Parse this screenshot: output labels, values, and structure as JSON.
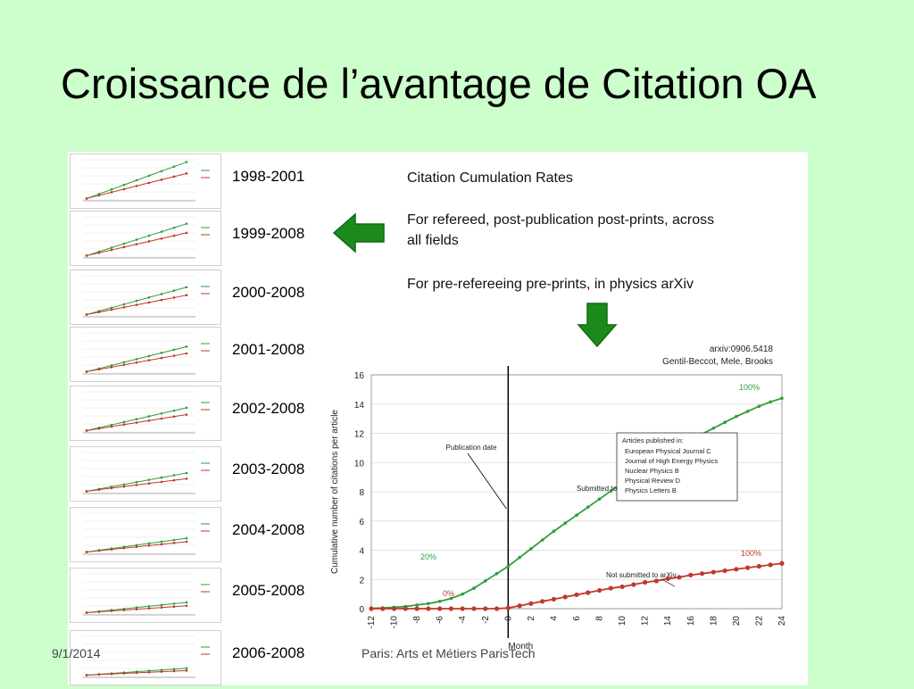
{
  "slide": {
    "title": "Croissance de l’avantage de Citation OA",
    "footer_date": "9/1/2014",
    "footer_place": "Paris: Arts et Métiers ParisTech"
  },
  "notes": {
    "heading": "Citation Cumulation Rates",
    "refereed_line1": "For refereed, post-publication post-prints, across",
    "refereed_line2": "all fields",
    "preprints": "For pre-refereeing pre-prints, in physics arXiv"
  },
  "colors": {
    "oa": "#2e9e3a",
    "non_oa": "#c0392b",
    "arrow": "#1b8a1b",
    "background": "#ccffcc"
  },
  "icons": {
    "left_arrow": "left-arrow-icon",
    "down_arrow": "down-arrow-icon"
  },
  "mini_charts": [
    {
      "range": "1998-2001",
      "oa": [
        2,
        34
      ],
      "non_oa": [
        2,
        24
      ]
    },
    {
      "range": "1999-2008",
      "oa": [
        2,
        30
      ],
      "non_oa": [
        2,
        22
      ]
    },
    {
      "range": "2000-2008",
      "oa": [
        2,
        26
      ],
      "non_oa": [
        2,
        19
      ]
    },
    {
      "range": "2001-2008",
      "oa": [
        2,
        24
      ],
      "non_oa": [
        2,
        18
      ]
    },
    {
      "range": "2002-2008",
      "oa": [
        2,
        22
      ],
      "non_oa": [
        2,
        16
      ]
    },
    {
      "range": "2003-2008",
      "oa": [
        2,
        18
      ],
      "non_oa": [
        2,
        13
      ]
    },
    {
      "range": "2004-2008",
      "oa": [
        2,
        14
      ],
      "non_oa": [
        2,
        11
      ]
    },
    {
      "range": "2005-2008",
      "oa": [
        2,
        11
      ],
      "non_oa": [
        2,
        8
      ]
    },
    {
      "range": "2006-2008",
      "oa": [
        2,
        8
      ],
      "non_oa": [
        2,
        6
      ]
    }
  ],
  "chart_data": {
    "type": "line",
    "source_line1": "arxiv:0906.5418",
    "source_line2": "Gentil-Beccot, Mele, Brooks",
    "xlabel": "Month",
    "ylabel": "Cumulative number of citations per article",
    "xlim": [
      -12,
      24
    ],
    "ylim": [
      0,
      16
    ],
    "xticks": [
      -12,
      -10,
      -8,
      -6,
      -4,
      -2,
      0,
      2,
      4,
      6,
      8,
      10,
      12,
      14,
      16,
      18,
      20,
      22,
      24
    ],
    "yticks": [
      0,
      2,
      4,
      6,
      8,
      10,
      12,
      14,
      16
    ],
    "publication_date_label": "Publication date",
    "publication_month": 0,
    "legend": {
      "title": "Articles published in:",
      "items": [
        "European Physical Journal C",
        "Journal of High Energy Physics",
        "Nuclear Physics B",
        "Physical Review D",
        "Physics Letters B"
      ]
    },
    "series": [
      {
        "name": "Submitted to arXiv",
        "color": "#2e9e3a",
        "x": [
          -12,
          -11,
          -10,
          -9,
          -8,
          -7,
          -6,
          -5,
          -4,
          -3,
          -2,
          -1,
          0,
          1,
          2,
          3,
          4,
          5,
          6,
          7,
          8,
          9,
          10,
          11,
          12,
          13,
          14,
          15,
          16,
          17,
          18,
          19,
          20,
          21,
          22,
          23,
          24
        ],
        "values": [
          0.02,
          0.05,
          0.1,
          0.15,
          0.25,
          0.35,
          0.5,
          0.7,
          1.0,
          1.4,
          1.9,
          2.4,
          2.9,
          3.5,
          4.1,
          4.7,
          5.3,
          5.85,
          6.4,
          6.95,
          7.5,
          8.05,
          8.6,
          9.15,
          9.65,
          10.15,
          10.65,
          11.1,
          11.55,
          11.95,
          12.35,
          12.75,
          13.15,
          13.5,
          13.85,
          14.15,
          14.4
        ],
        "start_label": "20%",
        "end_label": "100%"
      },
      {
        "name": "Not submitted to arXiv",
        "color": "#c0392b",
        "x": [
          -12,
          -11,
          -10,
          -9,
          -8,
          -7,
          -6,
          -5,
          -4,
          -3,
          -2,
          -1,
          0,
          1,
          2,
          3,
          4,
          5,
          6,
          7,
          8,
          9,
          10,
          11,
          12,
          13,
          14,
          15,
          16,
          17,
          18,
          19,
          20,
          21,
          22,
          23,
          24
        ],
        "values": [
          0,
          0,
          0,
          0,
          0,
          0,
          0,
          0,
          0,
          0,
          0,
          0,
          0.05,
          0.2,
          0.35,
          0.5,
          0.65,
          0.8,
          0.95,
          1.1,
          1.25,
          1.4,
          1.5,
          1.65,
          1.8,
          1.9,
          2.05,
          2.15,
          2.3,
          2.4,
          2.5,
          2.6,
          2.7,
          2.8,
          2.9,
          3.0,
          3.1
        ],
        "start_label": "0%",
        "end_label": "100%"
      }
    ]
  }
}
